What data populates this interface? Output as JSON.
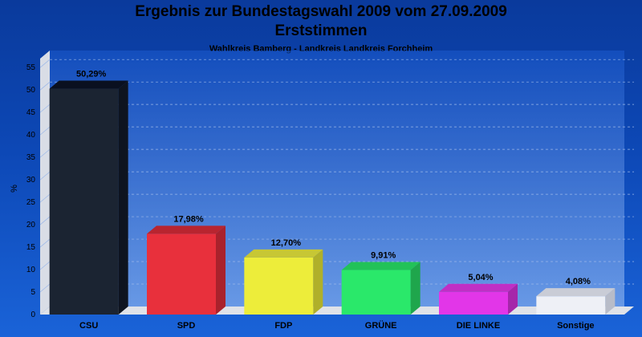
{
  "chart_data": {
    "type": "bar",
    "title": "Ergebnis zur Bundestagswahl 2009 vom 27.09.2009",
    "title_line2": "Erststimmen",
    "subtitle": "Wahlkreis Bamberg - Landkreis Landkreis Forchheim",
    "ylabel": "%",
    "xlabel": "",
    "ylim": [
      0,
      57
    ],
    "yticks": [
      0,
      5,
      10,
      15,
      20,
      25,
      30,
      35,
      40,
      45,
      50,
      55
    ],
    "grid": true,
    "categories": [
      "CSU",
      "SPD",
      "FDP",
      "GRÜNE",
      "DIE LINKE",
      "Sonstige"
    ],
    "values": [
      50.29,
      17.98,
      12.7,
      9.91,
      5.04,
      4.08
    ],
    "value_labels": [
      "50,29%",
      "17,98%",
      "12,70%",
      "9,91%",
      "5,04%",
      "4,08%"
    ],
    "colors": [
      "#1b2432",
      "#e8303c",
      "#eded3a",
      "#2ae86a",
      "#e236e8",
      "#eef0f6"
    ],
    "side_colors": [
      "#0e1420",
      "#a9222c",
      "#b0b02a",
      "#1fa64c",
      "#a526aa",
      "#b8bcc8"
    ],
    "top_colors": [
      "#0a1020",
      "#b8252f",
      "#c7c734",
      "#22c258",
      "#c02fc5",
      "#c9ccd6"
    ]
  }
}
